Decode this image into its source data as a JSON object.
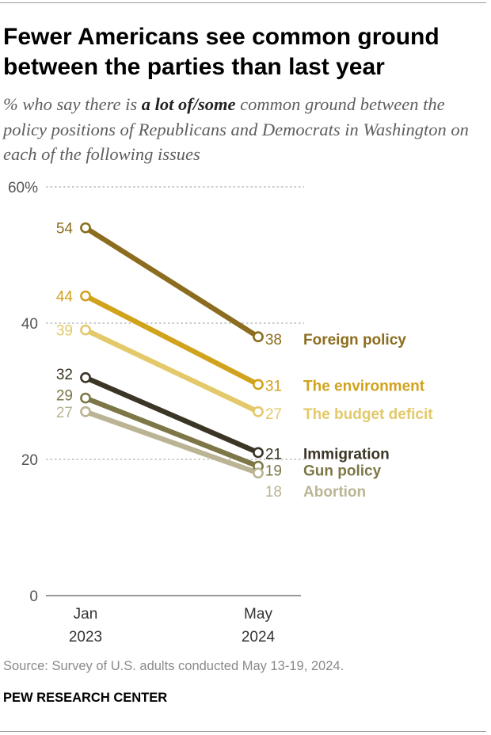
{
  "header": {
    "title": "Fewer Americans see common ground between the parties than last year",
    "subtitle_pre": "% who say there is ",
    "subtitle_emph": "a lot of/some",
    "subtitle_post": " common ground between the policy positions of Republicans and Democrats in Washington on each of the following issues"
  },
  "footer": {
    "source": "Source: Survey of U.S. adults conducted May 13-19, 2024.",
    "org": "PEW RESEARCH CENTER"
  },
  "chart_data": {
    "type": "line",
    "title": "Fewer Americans see common ground between the parties than last year",
    "categories": [
      {
        "month": "Jan",
        "year": "2023"
      },
      {
        "month": "May",
        "year": "2024"
      }
    ],
    "ylim": [
      0,
      60
    ],
    "y_ticks": [
      {
        "value": 0,
        "label": "0"
      },
      {
        "value": 20,
        "label": "20"
      },
      {
        "value": 40,
        "label": "40"
      },
      {
        "value": 60,
        "label": "60%"
      }
    ],
    "grid": true,
    "series": [
      {
        "name": "Foreign policy",
        "values": [
          54,
          38
        ],
        "color": "#8c6d1f"
      },
      {
        "name": "The environment",
        "values": [
          44,
          31
        ],
        "color": "#d1a21c"
      },
      {
        "name": "The budget deficit",
        "values": [
          39,
          27
        ],
        "color": "#e3c96a"
      },
      {
        "name": "Immigration",
        "values": [
          32,
          21
        ],
        "color": "#3b3526"
      },
      {
        "name": "Gun policy",
        "values": [
          29,
          19
        ],
        "color": "#7d7747"
      },
      {
        "name": "Abortion",
        "values": [
          27,
          18
        ],
        "color": "#bbb494"
      }
    ]
  }
}
